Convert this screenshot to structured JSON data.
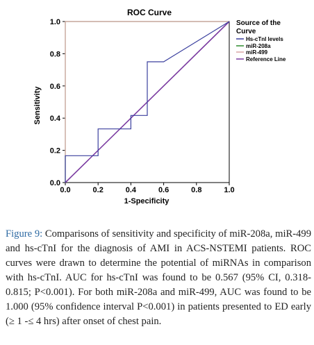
{
  "caption": {
    "label": "Figure 9:",
    "text": "Comparisons of sensitivity and specificity of miR-208a, miR-499 and hs-cTnI for the diagnosis of AMI in ACS-NSTEMI patients. ROC curves were drawn to determine the potential of miRNAs in comparison with hs-cTnI. AUC for hs-cTnI was found to be 0.567 (95% CI, 0.318-0.815; P<0.001). For both miR-208a and miR-499, AUC was found to be 1.000 (95% confidence interval P<0.001) in patients presented to ED early (≥ 1 -≤ 4 hrs) after onset of chest pain."
  },
  "chart_data": {
    "type": "line",
    "title": "ROC Curve",
    "xlabel": "1-Specificity",
    "ylabel": "Sensitivity",
    "xlim": [
      0,
      1
    ],
    "ylim": [
      0,
      1
    ],
    "xticks": [
      "0.0",
      "0.2",
      "0.4",
      "0.6",
      "0.8",
      "1.0"
    ],
    "yticks": [
      "0.0",
      "0.2",
      "0.4",
      "0.6",
      "0.8",
      "1.0"
    ],
    "legend": {
      "title": "Source of the Curve",
      "placement": "right"
    },
    "series": [
      {
        "name": "Hs-cTnI levels",
        "color": "#3a3f9e",
        "x": [
          0,
          0,
          0.2,
          0.2,
          0.4,
          0.4,
          0.5,
          0.5,
          0.6,
          1.0
        ],
        "y": [
          0,
          0.167,
          0.167,
          0.333,
          0.333,
          0.417,
          0.417,
          0.75,
          0.75,
          1.0
        ]
      },
      {
        "name": "miR-208a",
        "color": "#2e8b2e",
        "x": [
          0,
          0,
          1.0
        ],
        "y": [
          0,
          1.0,
          1.0
        ]
      },
      {
        "name": "miR-499",
        "color": "#d9a6a6",
        "x": [
          0,
          0,
          1.0
        ],
        "y": [
          0,
          1.0,
          1.0
        ]
      },
      {
        "name": "Reference Line",
        "color": "#7a3aa0",
        "x": [
          0,
          1.0
        ],
        "y": [
          0,
          1.0
        ]
      }
    ]
  }
}
